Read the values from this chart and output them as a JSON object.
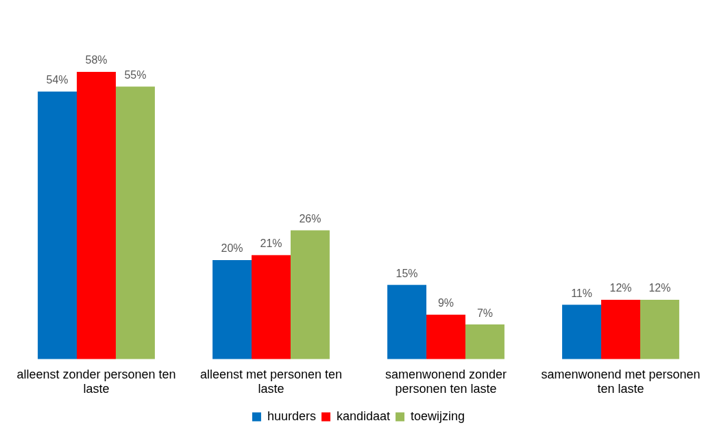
{
  "chart_data": {
    "type": "bar",
    "categories": [
      "alleenst zonder personen ten laste",
      "alleenst met personen ten laste",
      "samenwonend zonder personen ten laste",
      "samenwonend met personen ten laste"
    ],
    "series": [
      {
        "name": "huurders",
        "color": "#0070c0",
        "values": [
          54,
          20,
          15,
          11
        ],
        "value_labels": [
          "54%",
          "20%",
          "15%",
          "11%"
        ]
      },
      {
        "name": "kandidaat",
        "color": "#ff0000",
        "values": [
          58,
          21,
          9,
          12
        ],
        "value_labels": [
          "58%",
          "21%",
          "9%",
          "12%"
        ]
      },
      {
        "name": "toewijzing",
        "color": "#9bbb59",
        "values": [
          55,
          26,
          7,
          12
        ],
        "value_labels": [
          "55%",
          "26%",
          "7%",
          "12%"
        ]
      }
    ],
    "legend": "bottom",
    "grid": false
  }
}
